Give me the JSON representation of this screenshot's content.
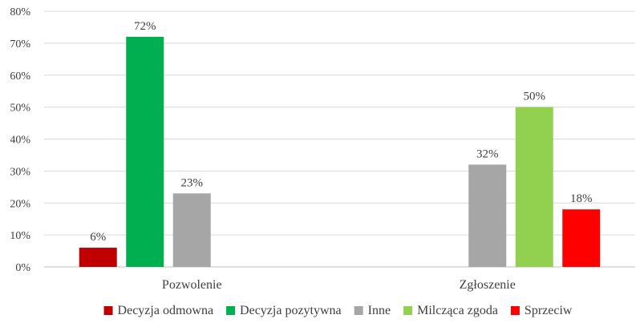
{
  "chart_data": {
    "type": "bar",
    "title": "",
    "xlabel": "",
    "ylabel": "",
    "ylim": [
      0,
      80
    ],
    "y_ticks": [
      "0%",
      "10%",
      "20%",
      "30%",
      "40%",
      "50%",
      "60%",
      "70%",
      "80%"
    ],
    "grid": true,
    "legend_position": "bottom",
    "categories": [
      "Pozwolenie",
      "Zgłoszenie"
    ],
    "series": [
      {
        "name": "Decyzja odmowna",
        "color": "#c00000",
        "values": [
          6,
          null
        ],
        "labels": [
          "6%",
          ""
        ]
      },
      {
        "name": "Decyzja pozytywna",
        "color": "#00b050",
        "values": [
          72,
          null
        ],
        "labels": [
          "72%",
          ""
        ]
      },
      {
        "name": "Inne",
        "color": "#a6a6a6",
        "values": [
          23,
          32
        ],
        "labels": [
          "23%",
          "32%"
        ]
      },
      {
        "name": "Milcząca zgoda",
        "color": "#92d050",
        "values": [
          null,
          50
        ],
        "labels": [
          "",
          "50%"
        ]
      },
      {
        "name": "Sprzeciw",
        "color": "#ff0000",
        "values": [
          null,
          18
        ],
        "labels": [
          "",
          "18%"
        ]
      }
    ]
  }
}
